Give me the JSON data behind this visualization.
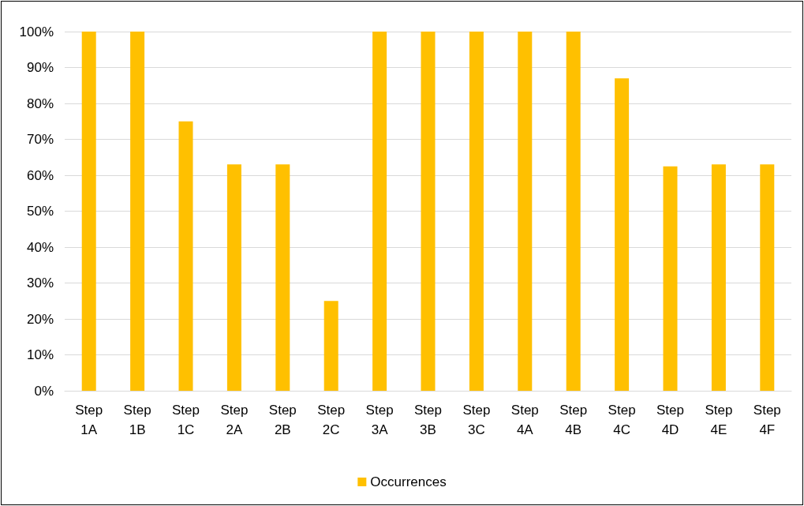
{
  "chart_data": {
    "type": "bar",
    "categories": [
      "Step\n1A",
      "Step\n1B",
      "Step\n1C",
      "Step\n2A",
      "Step\n2B",
      "Step\n2C",
      "Step\n3A",
      "Step\n3B",
      "Step\n3C",
      "Step\n4A",
      "Step\n4B",
      "Step\n4C",
      "Step\n4D",
      "Step\n4E",
      "Step\n4F"
    ],
    "series": [
      {
        "name": "Occurrences",
        "color": "#ffc000",
        "values": [
          100,
          100,
          75,
          63,
          63,
          25,
          100,
          100,
          100,
          100,
          100,
          87,
          62.5,
          63,
          63
        ]
      }
    ],
    "ylim": [
      0,
      100
    ],
    "yticks": [
      {
        "value": 0,
        "label": "0%"
      },
      {
        "value": 10,
        "label": "10%"
      },
      {
        "value": 20,
        "label": "20%"
      },
      {
        "value": 30,
        "label": "30%"
      },
      {
        "value": 40,
        "label": "40%"
      },
      {
        "value": 50,
        "label": "50%"
      },
      {
        "value": 60,
        "label": "60%"
      },
      {
        "value": 70,
        "label": "70%"
      },
      {
        "value": 80,
        "label": "80%"
      },
      {
        "value": 90,
        "label": "90%"
      },
      {
        "value": 100,
        "label": "100%"
      }
    ],
    "grid": "y",
    "legend": "bottom"
  }
}
